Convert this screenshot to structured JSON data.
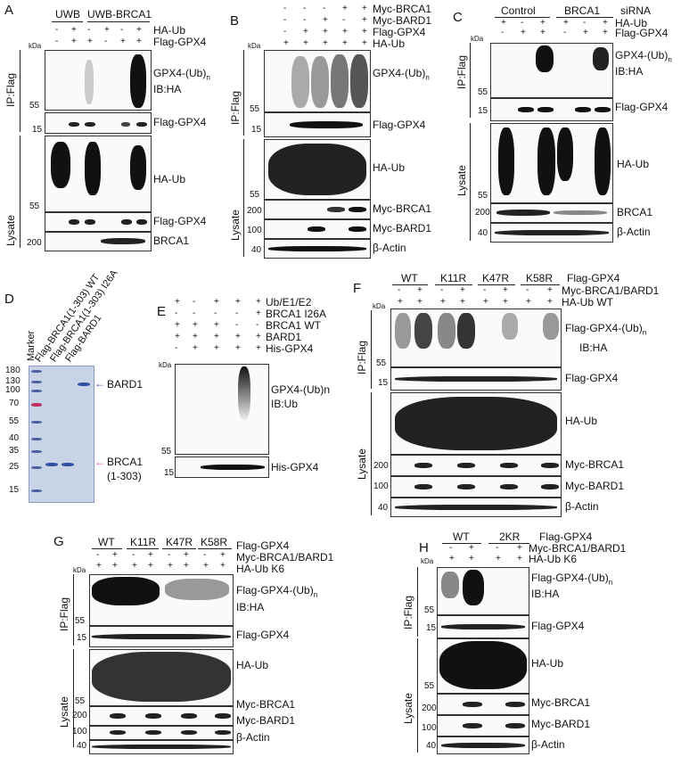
{
  "panels": {
    "A": {
      "letter": "A",
      "group_left": "UWB",
      "group_right": "UWB-BRCA1",
      "row_ha": {
        "label": "HA-Ub",
        "marks": [
          "-",
          "+",
          "-",
          "+",
          "-",
          "+"
        ]
      },
      "row_flag": {
        "label": "Flag-GPX4",
        "marks": [
          "-",
          "+",
          "+",
          "-",
          "+",
          "+"
        ]
      },
      "kda": "kDa",
      "ip_label": "IP:Flag",
      "lysate_label": "Lysate",
      "band1_l1": "GPX4-(Ub)",
      "band1_sub": "n",
      "band1_l2": "IB:HA",
      "band2": "Flag-GPX4",
      "band3": "HA-Ub",
      "band4": "Flag-GPX4",
      "band5": "BRCA1",
      "mw": [
        "55",
        "15",
        "55",
        "15",
        "200"
      ]
    },
    "B": {
      "letter": "B",
      "rows": [
        {
          "label": "Myc-BRCA1",
          "marks": [
            "-",
            "-",
            "-",
            "+",
            "+"
          ]
        },
        {
          "label": "Myc-BARD1",
          "marks": [
            "-",
            "-",
            "+",
            "-",
            "+"
          ]
        },
        {
          "label": "Flag-GPX4",
          "marks": [
            "-",
            "+",
            "+",
            "+",
            "+"
          ]
        },
        {
          "label": "HA-Ub",
          "marks": [
            "+",
            "+",
            "+",
            "+",
            "+"
          ]
        }
      ],
      "kda": "kDa",
      "ip_label": "IP:Flag",
      "lysate_label": "Lysate",
      "band1": "GPX4-(Ub)",
      "band1_sub": "n",
      "band2": "Flag-GPX4",
      "band3": "HA-Ub",
      "band4": "Myc-BRCA1",
      "band5": "Myc-BARD1",
      "band6": "β-Actin",
      "mw": [
        "55",
        "15",
        "55",
        "200",
        "100",
        "40"
      ]
    },
    "C": {
      "letter": "C",
      "group_left": "Control",
      "group_right": "BRCA1",
      "group_suffix": "siRNA",
      "row_ha": {
        "label": "HA-Ub",
        "marks": [
          "+",
          "-",
          "+",
          "+",
          "-",
          "+"
        ]
      },
      "row_flag": {
        "label": "Flag-GPX4",
        "marks": [
          "-",
          "+",
          "+",
          "-",
          "+",
          "+"
        ]
      },
      "kda": "kDa",
      "ip_label": "IP:Flag",
      "lysate_label": "Lysate",
      "band1_l1": "GPX4-(Ub)",
      "band1_sub": "n",
      "band1_l2": "IB:HA",
      "band2": "Flag-GPX4",
      "band3": "HA-Ub",
      "band4": "BRCA1",
      "band5": "β-Actin",
      "mw": [
        "55",
        "15",
        "55",
        "200",
        "40"
      ]
    },
    "D": {
      "letter": "D",
      "lanes": [
        "Marker",
        "Flag-BRCA1(1-303) WT",
        "Flag-BRCA1(1-303) I26A",
        "Flag-BARD1"
      ],
      "markers": [
        "180",
        "130",
        "100",
        "70",
        "55",
        "40",
        "35",
        "25",
        "15"
      ],
      "arrow1": "BARD1",
      "arrow2_l1": "BRCA1",
      "arrow2_l2": "(1-303)"
    },
    "E": {
      "letter": "E",
      "rows": [
        {
          "label": "Ub/E1/E2",
          "marks": [
            "+",
            "-",
            "+",
            "+",
            "+"
          ]
        },
        {
          "label": "BRCA1 I26A",
          "marks": [
            "-",
            "-",
            "-",
            "-",
            "+"
          ]
        },
        {
          "label": "BRCA1 WT",
          "marks": [
            "+",
            "+",
            "+",
            "-",
            "-"
          ]
        },
        {
          "label": "BARD1",
          "marks": [
            "+",
            "+",
            "+",
            "+",
            "+"
          ]
        },
        {
          "label": "His-GPX4",
          "marks": [
            "-",
            "+",
            "+",
            "+",
            "+"
          ]
        }
      ],
      "kda": "kDa",
      "band1_l1": "GPX4-(Ub)n",
      "band1_l2": "IB:Ub",
      "band2": "His-GPX4",
      "mw": [
        "55",
        "15"
      ]
    },
    "F": {
      "letter": "F",
      "groups": [
        "WT",
        "K11R",
        "K47R",
        "K58R"
      ],
      "group_suffix": "Flag-GPX4",
      "row_myc": {
        "label": "Myc-BRCA1/BARD1",
        "marks": [
          "-",
          "+",
          "-",
          "+",
          "-",
          "+",
          "-",
          "+"
        ]
      },
      "row_ha": {
        "label": "HA-Ub WT",
        "marks": [
          "+",
          "+",
          "+",
          "+",
          "+",
          "+",
          "+",
          "+"
        ]
      },
      "kda": "kDa",
      "ip_label": "IP:Flag",
      "lysate_label": "Lysate",
      "band1_l1": "Flag-GPX4-(Ub)",
      "band1_sub": "n",
      "band1_l2": "IB:HA",
      "band2": "Flag-GPX4",
      "band3": "HA-Ub",
      "band4": "Myc-BRCA1",
      "band5": "Myc-BARD1",
      "band6": "β-Actin",
      "mw": [
        "55",
        "15",
        "200",
        "100",
        "40"
      ]
    },
    "G": {
      "letter": "G",
      "groups": [
        "WT",
        "K11R",
        "K47R",
        "K58R"
      ],
      "group_suffix": "Flag-GPX4",
      "row_myc": {
        "label": "Myc-BRCA1/BARD1",
        "marks": [
          "-",
          "+",
          "-",
          "+",
          "-",
          "+",
          "-",
          "+"
        ]
      },
      "row_ha": {
        "label": "HA-Ub K6",
        "marks": [
          "+",
          "+",
          "+",
          "+",
          "+",
          "+",
          "+",
          "+"
        ]
      },
      "kda": "kDa",
      "ip_label": "IP:Flag",
      "lysate_label": "Lysate",
      "band1_l1": "Flag-GPX4-(Ub)",
      "band1_sub": "n",
      "band1_l2": "IB:HA",
      "band2": "Flag-GPX4",
      "band3": "HA-Ub",
      "band4": "Myc-BRCA1",
      "band5": "Myc-BARD1",
      "band6": "β-Actin",
      "mw": [
        "55",
        "15",
        "55",
        "200",
        "100",
        "40"
      ]
    },
    "H": {
      "letter": "H",
      "groups": [
        "WT",
        "2KR"
      ],
      "group_suffix": "Flag-GPX4",
      "row_myc": {
        "label": "Myc-BRCA1/BARD1",
        "marks": [
          "-",
          "+",
          "-",
          "+"
        ]
      },
      "row_ha": {
        "label": "HA-Ub K6",
        "marks": [
          "+",
          "+",
          "+",
          "+"
        ]
      },
      "kda": "kDa",
      "ip_label": "IP:Flag",
      "lysate_label": "Lysate",
      "band1_l1": "Flag-GPX4-(Ub)",
      "band1_sub": "n",
      "band1_l2": "IB:HA",
      "band2": "Flag-GPX4",
      "band3": "HA-Ub",
      "band4": "Myc-BRCA1",
      "band5": "Myc-BARD1",
      "band6": "β-Actin",
      "mw": [
        "55",
        "15",
        "55",
        "200",
        "100",
        "40"
      ]
    }
  }
}
